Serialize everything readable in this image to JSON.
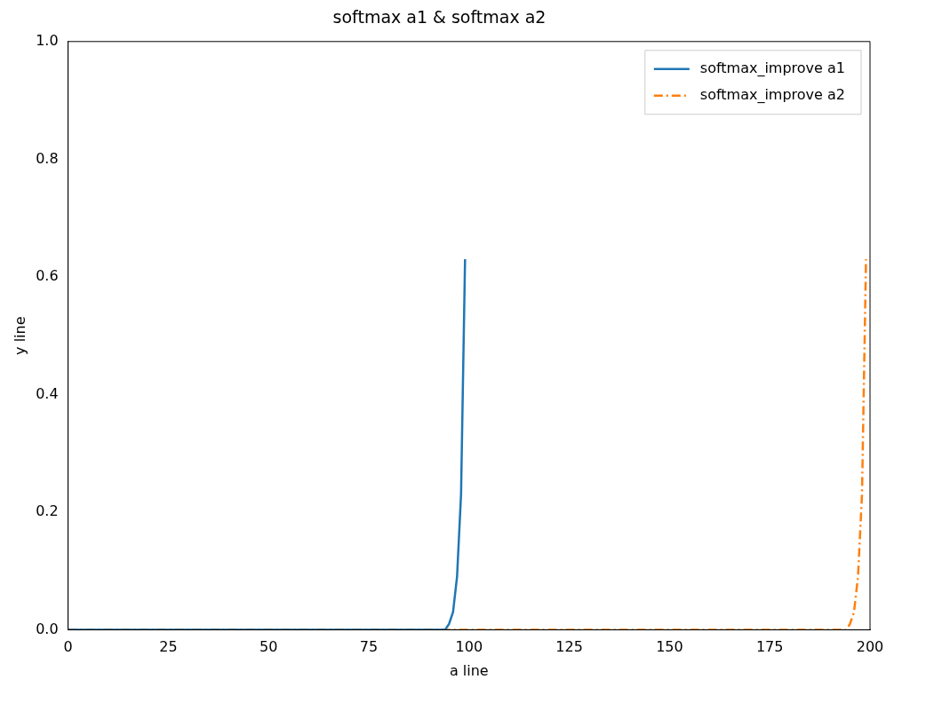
{
  "chart_data": {
    "type": "line",
    "title": "softmax a1 & softmax a2",
    "xlabel": "a line",
    "ylabel": "y line",
    "xlim": [
      0,
      200
    ],
    "xticks": [
      0,
      25,
      50,
      75,
      100,
      125,
      150,
      175,
      200
    ],
    "ylim": [
      0,
      1
    ],
    "yticks": [
      {
        "value": 0,
        "label": "0.0"
      },
      {
        "value": 0.2,
        "label": "0.2"
      },
      {
        "value": 0.4,
        "label": "0.4"
      },
      {
        "value": 0.6,
        "label": "0.6"
      },
      {
        "value": 0.8,
        "label": "0.8"
      },
      {
        "value": 1,
        "label": "1.0"
      }
    ],
    "grid": false,
    "legend": "top right",
    "marker": "none",
    "series": [
      {
        "name": "softmax_improve a1",
        "color": "#1f77b4",
        "line_style": "solid",
        "x": [
          0,
          93,
          94,
          95,
          96,
          97,
          98,
          99
        ],
        "values": [
          0,
          0,
          0,
          0.01,
          0.03,
          0.09,
          0.23,
          0.63
        ]
      },
      {
        "name": "softmax_improve a2",
        "color": "#ff7f0e",
        "line_style": "dashed",
        "x": [
          0,
          193,
          194,
          195,
          196,
          197,
          198,
          199
        ],
        "values": [
          0,
          0,
          0,
          0.01,
          0.03,
          0.09,
          0.23,
          0.63
        ]
      }
    ]
  }
}
